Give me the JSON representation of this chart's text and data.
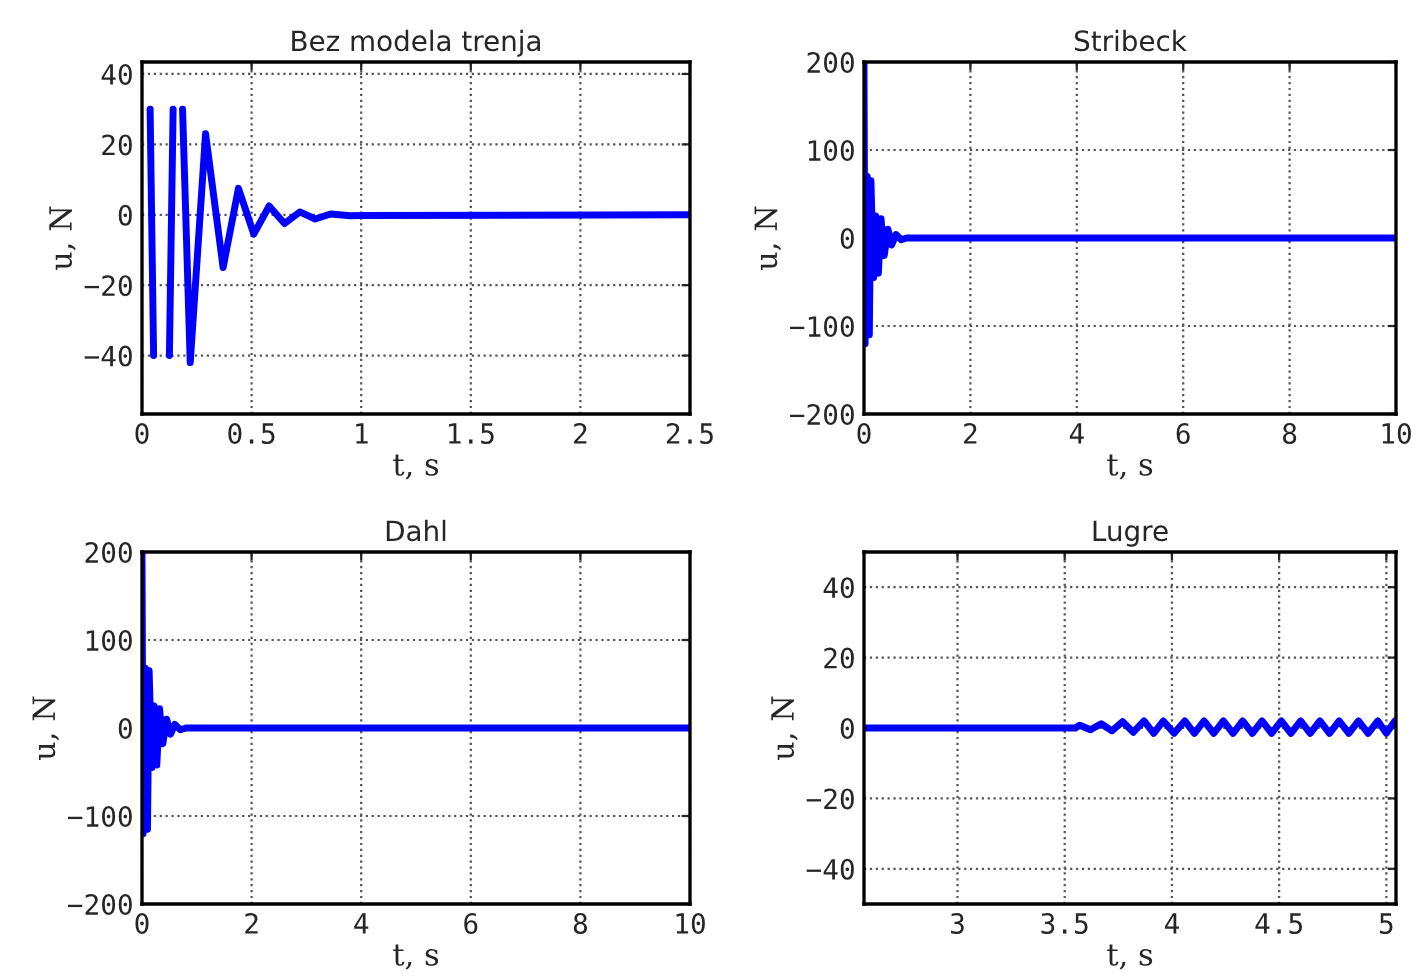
{
  "chart_data": [
    {
      "type": "line",
      "title": "Bez modela trenja",
      "xlabel": "t, s",
      "ylabel": "u, N",
      "xlim": [
        0,
        2.5
      ],
      "ylim": [
        -56.6,
        43.4
      ],
      "xticks": [
        0,
        0.5,
        1,
        1.5,
        2,
        2.5
      ],
      "yticks": [
        -40,
        -20,
        0,
        20,
        40
      ],
      "grid": true,
      "series": [
        {
          "color": "#0000ff",
          "x": [
            0.037,
            0.053,
            0.09,
            0.125,
            0.142,
            0.16,
            0.185,
            0.22,
            0.29,
            0.37,
            0.44,
            0.51,
            0.58,
            0.65,
            0.72,
            0.79,
            0.86,
            0.95,
            1.0,
            2.5
          ],
          "values": [
            30,
            -40,
            null,
            -40,
            30,
            null,
            30,
            -42,
            23,
            -15,
            7.5,
            -5.5,
            2.5,
            -2.5,
            0.8,
            -1.2,
            0.2,
            -0.3,
            -0.2,
            0
          ]
        }
      ]
    },
    {
      "type": "line",
      "title": "Stribeck",
      "xlabel": "t, s",
      "ylabel": "u, N",
      "xlim": [
        0,
        10
      ],
      "ylim": [
        -200,
        200
      ],
      "xticks": [
        0,
        2,
        4,
        6,
        8,
        10
      ],
      "yticks": [
        -200,
        -100,
        0,
        100,
        200
      ],
      "grid": true,
      "series": [
        {
          "color": "#0000ff",
          "x": [
            0,
            0.02,
            0.06,
            0.1,
            0.13,
            0.18,
            0.22,
            0.27,
            0.32,
            0.38,
            0.45,
            0.52,
            0.6,
            0.7,
            0.8,
            10
          ],
          "values": [
            200,
            -120,
            70,
            -110,
            65,
            -45,
            25,
            -40,
            22,
            -20,
            10,
            -8,
            4,
            -2,
            0,
            0
          ]
        }
      ]
    },
    {
      "type": "line",
      "title": "Dahl",
      "xlabel": "t, s",
      "ylabel": "u, N",
      "xlim": [
        0,
        10
      ],
      "ylim": [
        -200,
        200
      ],
      "xticks": [
        0,
        2,
        4,
        6,
        8,
        10
      ],
      "yticks": [
        -200,
        -100,
        0,
        100,
        200
      ],
      "grid": true,
      "series": [
        {
          "color": "#0000ff",
          "x": [
            0,
            0.02,
            0.06,
            0.1,
            0.13,
            0.18,
            0.22,
            0.27,
            0.32,
            0.38,
            0.45,
            0.52,
            0.6,
            0.7,
            0.8,
            10
          ],
          "values": [
            200,
            -120,
            68,
            -115,
            65,
            -45,
            25,
            -42,
            22,
            -18,
            10,
            -7,
            4,
            -2,
            0,
            0
          ]
        }
      ]
    },
    {
      "type": "line",
      "title": "Lugre",
      "xlabel": "t, s",
      "ylabel": "u, N",
      "xlim": [
        2.564,
        5.045
      ],
      "ylim": [
        -50,
        50
      ],
      "xticks": [
        3,
        3.5,
        4,
        4.5,
        5
      ],
      "yticks": [
        -40,
        -20,
        0,
        20,
        40
      ],
      "grid": true,
      "series": [
        {
          "color": "#0000ff",
          "x": [
            2.564,
            3.55,
            3.57,
            3.62,
            3.67,
            3.72,
            3.77,
            3.82,
            3.87,
            3.915,
            3.96,
            4.01,
            4.06,
            4.105,
            4.15,
            4.195,
            4.24,
            4.285,
            4.33,
            4.375,
            4.42,
            4.465,
            4.51,
            4.555,
            4.6,
            4.645,
            4.69,
            4.735,
            4.78,
            4.825,
            4.87,
            4.915,
            4.96,
            5.0,
            5.04
          ],
          "values": [
            0,
            0,
            0.8,
            -0.5,
            1.2,
            -0.8,
            1.8,
            -1.2,
            2,
            -1.5,
            2,
            -1.5,
            2,
            -1.5,
            2,
            -1.5,
            2,
            -1.5,
            2,
            -1.5,
            2,
            -1.5,
            2,
            -1.5,
            2,
            -1.5,
            2,
            -1.5,
            2,
            -1.5,
            2,
            -1.5,
            2,
            -1.5,
            2
          ]
        }
      ]
    }
  ]
}
